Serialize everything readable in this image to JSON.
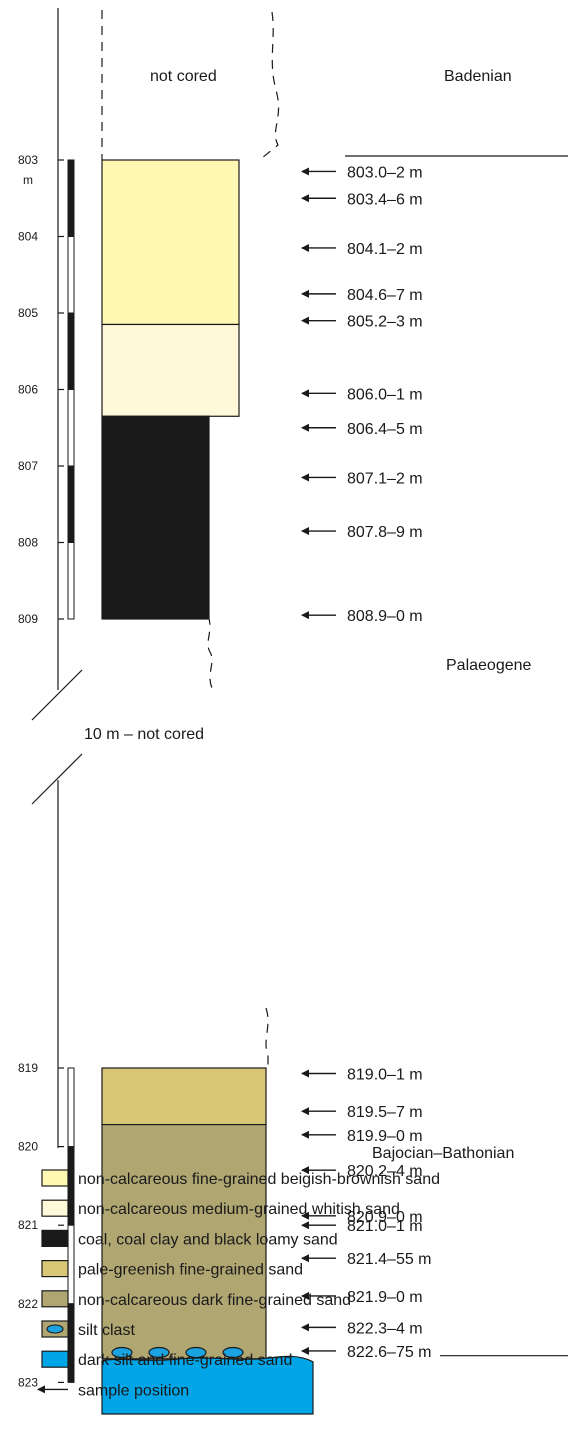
{
  "labels": {
    "not_cored_top": "not cored",
    "badenian": "Badenian",
    "palaeogene": "Palaeogene",
    "gap_not_cored": "10 m – not cored",
    "bajocian_bathonian": "Bajocian–Bathonian",
    "depth_unit": "m"
  },
  "colors": {
    "beige_sand": "#FFF8B3",
    "whitish_sand": "#FFF8D9",
    "coal": "#1A1A1A",
    "pale_green_sand": "#D8C777",
    "dark_sand": "#B0A672",
    "silt_clast": "#1AA3E0",
    "dark_silt": "#00A5E8"
  },
  "upper_section": {
    "depth_ticks": [
      "803",
      "804",
      "805",
      "806",
      "807",
      "808",
      "809"
    ],
    "depth_range_m": [
      803,
      809
    ],
    "layers": [
      {
        "top_m": 803.0,
        "bottom_m": 805.15,
        "color_key": "beige_sand",
        "width_class": "wide"
      },
      {
        "top_m": 805.15,
        "bottom_m": 806.35,
        "color_key": "whitish_sand",
        "width_class": "wide"
      },
      {
        "top_m": 806.35,
        "bottom_m": 809.0,
        "color_key": "coal",
        "width_class": "narrow"
      }
    ],
    "samples": [
      {
        "label": "803.0–2 m",
        "depth_m": 803.15
      },
      {
        "label": "803.4–6 m",
        "depth_m": 803.5
      },
      {
        "label": "804.1–2 m",
        "depth_m": 804.15
      },
      {
        "label": "804.6–7 m",
        "depth_m": 804.75
      },
      {
        "label": "805.2–3 m",
        "depth_m": 805.1
      },
      {
        "label": "806.0–1 m",
        "depth_m": 806.05
      },
      {
        "label": "806.4–5 m",
        "depth_m": 806.5
      },
      {
        "label": "807.1–2 m",
        "depth_m": 807.15
      },
      {
        "label": "807.8–9 m",
        "depth_m": 807.85
      },
      {
        "label": "808.9–0 m",
        "depth_m": 808.95
      }
    ]
  },
  "lower_section": {
    "depth_ticks": [
      "819",
      "820",
      "821",
      "822",
      "823"
    ],
    "depth_range_m": [
      819,
      823
    ],
    "layers": [
      {
        "top_m": 819.0,
        "bottom_m": 819.72,
        "color_key": "pale_green_sand"
      },
      {
        "top_m": 819.72,
        "bottom_m": 822.7,
        "color_key": "dark_sand"
      },
      {
        "top_m": 822.7,
        "bottom_m": 823.3,
        "color_key": "dark_silt"
      }
    ],
    "samples": [
      {
        "label": "819.0–1 m",
        "depth_m": 819.07
      },
      {
        "label": "819.5–7 m",
        "depth_m": 819.55
      },
      {
        "label": "819.9–0 m",
        "depth_m": 819.85
      },
      {
        "label": "820.2–4 m",
        "depth_m": 820.3
      },
      {
        "label": "820.9–0 m",
        "depth_m": 820.88
      },
      {
        "label": "821.0–1 m",
        "depth_m": 821.0
      },
      {
        "label": "821.4–55 m",
        "depth_m": 821.42
      },
      {
        "label": "821.9–0 m",
        "depth_m": 821.9
      },
      {
        "label": "822.3–4 m",
        "depth_m": 822.3
      },
      {
        "label": "822.6–75 m",
        "depth_m": 822.6
      }
    ],
    "silt_clast_count": 4
  },
  "legend": [
    {
      "label": "non-calcareous fine-grained beigish-brownish sand",
      "color_key": "beige_sand",
      "kind": "box"
    },
    {
      "label": "non-calcareous medium-grained whitish sand",
      "color_key": "whitish_sand",
      "kind": "box"
    },
    {
      "label": "coal, coal clay and black loamy sand",
      "color_key": "coal",
      "kind": "box"
    },
    {
      "label": "pale-greenish fine-grained sand",
      "color_key": "pale_green_sand",
      "kind": "box"
    },
    {
      "label": "non-calcareous dark fine-grained sand",
      "color_key": "dark_sand",
      "kind": "box"
    },
    {
      "label": "silt clast",
      "color_key": "dark_sand",
      "kind": "clast"
    },
    {
      "label": "dark silt and fine-grained sand",
      "color_key": "dark_silt",
      "kind": "box"
    },
    {
      "label": "sample position",
      "color_key": "coal",
      "kind": "arrow"
    }
  ]
}
